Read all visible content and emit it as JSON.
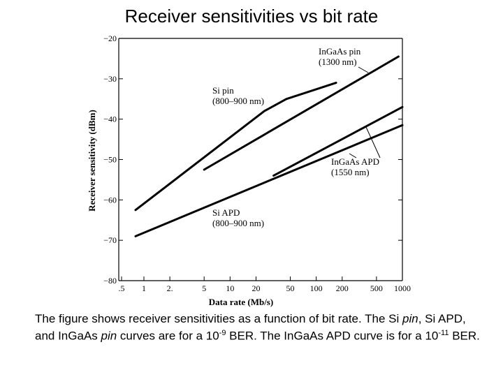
{
  "slide": {
    "title": "Receiver sensitivities vs bit rate"
  },
  "chart_data": {
    "type": "line",
    "xlabel": "Data rate (Mb/s)",
    "ylabel": "Receiver sensitivity (dBm)",
    "x_scale": "log",
    "xlim": [
      0.5,
      1000
    ],
    "ylim": [
      -80,
      -20
    ],
    "x_ticks": [
      0.5,
      1,
      2,
      5,
      10,
      20,
      50,
      100,
      200,
      500,
      1000
    ],
    "x_tick_labels": [
      ".5",
      "1",
      "2.",
      "5",
      "10",
      "20",
      "50",
      "100",
      "200",
      "500",
      "1000"
    ],
    "y_ticks": [
      -20,
      -30,
      -40,
      -50,
      -60,
      -70,
      -80
    ],
    "y_tick_labels": [
      "−20",
      "−30",
      "−40",
      "−50",
      "−60",
      "−70",
      "−80"
    ],
    "grid": false,
    "series": [
      {
        "name": "Si pin",
        "sub": "(800–900 nm)",
        "x": [
          0.8,
          25,
          45,
          170
        ],
        "y": [
          -62.5,
          -38,
          -35,
          -31
        ]
      },
      {
        "name": "InGaAs pin",
        "sub": "(1300 nm)",
        "x": [
          5,
          900
        ],
        "y": [
          -52.5,
          -24.5
        ]
      },
      {
        "name": "InGaAs APD",
        "sub": "(1550 nm)",
        "x": [
          32,
          1000
        ],
        "y": [
          -54,
          -37
        ]
      },
      {
        "name": "Si APD",
        "sub": "(800–900 nm)",
        "x": [
          0.8,
          1000
        ],
        "y": [
          -69,
          -41.5
        ]
      }
    ]
  },
  "caption": {
    "p1": "The figure shows receiver sensitivities as a function of bit rate. The Si ",
    "p1_em": "pin",
    "p2": ", Si APD, and InGaAs ",
    "p2_em": "pin",
    "p3": " curves are for a 10",
    "p3_sup": "-9",
    "p4": " BER. The InGaAs APD curve is for a 10",
    "p4_sup": "-11",
    "p5": " BER."
  }
}
